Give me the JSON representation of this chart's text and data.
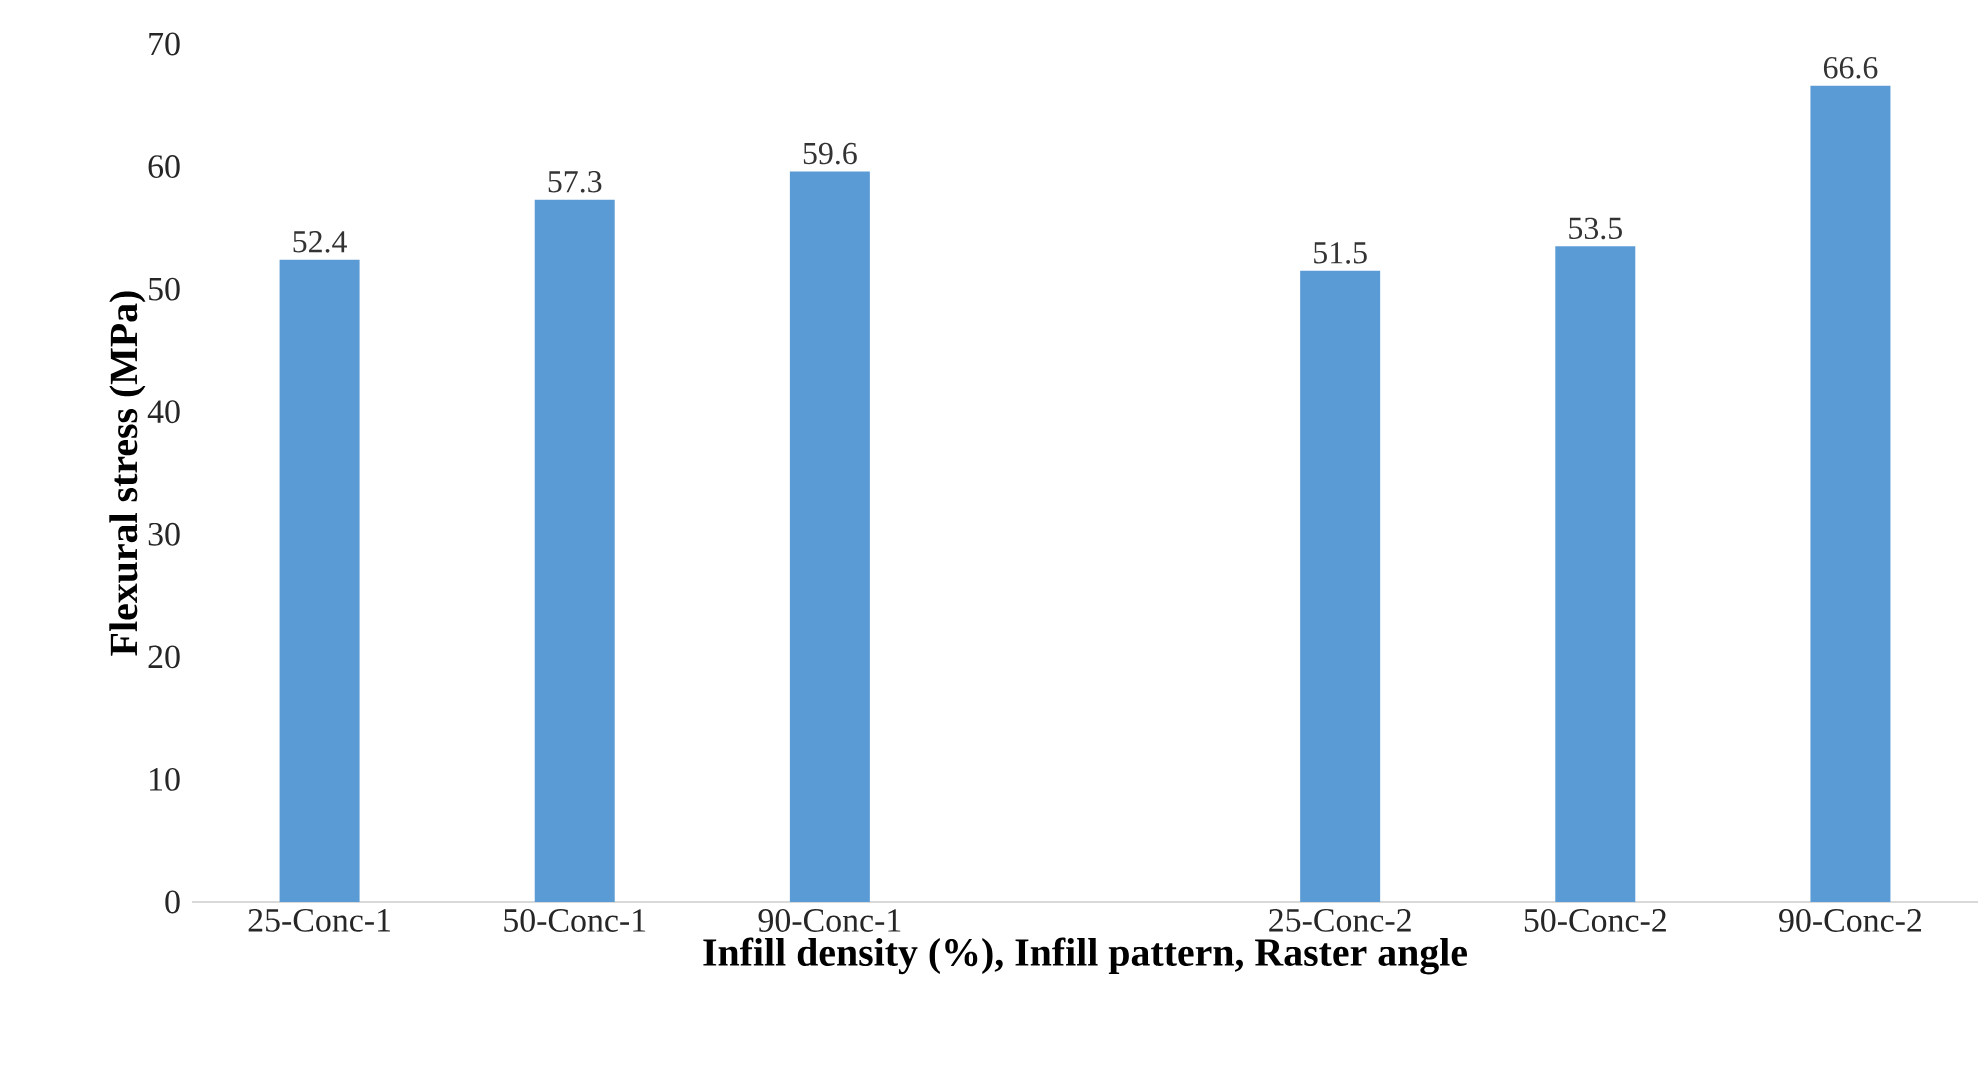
{
  "chart_data": {
    "type": "bar",
    "xlabel": "Infill density (%), Infill pattern, Raster angle",
    "ylabel": "Flexural stress (MPa)",
    "categories": [
      "25-Conc-1",
      "50-Conc-1",
      "90-Conc-1",
      null,
      "25-Conc-2",
      "50-Conc-2",
      "90-Conc-2"
    ],
    "values": [
      52.4,
      57.3,
      59.6,
      null,
      51.5,
      53.5,
      66.6
    ],
    "color": "#5b9bd5",
    "ylim": [
      0,
      70
    ],
    "yticks": [
      0,
      10,
      20,
      30,
      40,
      50,
      60,
      70
    ],
    "data_labels": true
  }
}
